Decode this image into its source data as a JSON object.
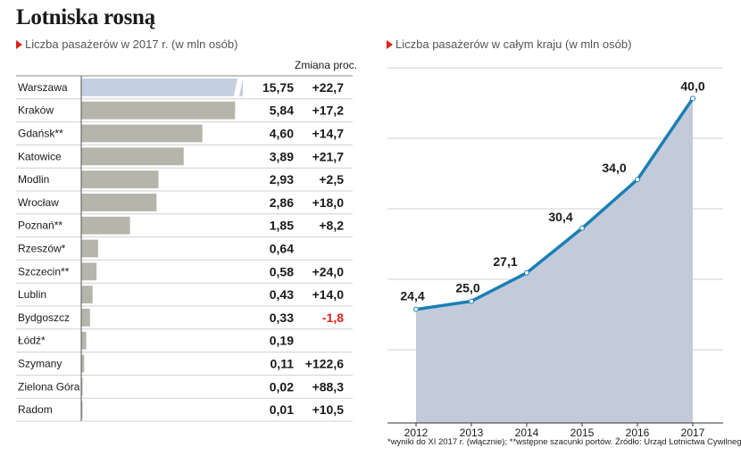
{
  "title": "Lotniska rosną",
  "left_subtitle": "Liczba pasażerów w 2017 r. (w mln osób)",
  "right_subtitle": "Liczba pasażerów w całym kraju (w mln osób)",
  "change_header": "Zmiana proc.",
  "footnote": "*wyniki do XI 2017 r. (włącznie); **wstępne szacunki portów. Źródło: Urząd Lotnictwa Cywilnego",
  "colors": {
    "bar": "#b5b5ab",
    "bar_highlight": "#c5cfe2",
    "negative": "#e2231a",
    "area": "#c3cbdb",
    "line": "#1a7fb5",
    "accent": "#e2231a"
  },
  "chart_data": [
    {
      "type": "bar",
      "orientation": "horizontal",
      "title": "Liczba pasażerów w 2017 r. (w mln osób)",
      "categories": [
        "Warszawa",
        "Kraków",
        "Gdańsk**",
        "Katowice",
        "Modlin",
        "Wrocław",
        "Poznań**",
        "Rzeszów*",
        "Szczecin**",
        "Lublin",
        "Bydgoszcz",
        "Łódź*",
        "Szymany",
        "Zielona Góra",
        "Radom"
      ],
      "values": [
        15.75,
        5.84,
        4.6,
        3.89,
        2.93,
        2.86,
        1.85,
        0.64,
        0.58,
        0.43,
        0.33,
        0.19,
        0.11,
        0.02,
        0.01
      ],
      "value_labels": [
        "15,75",
        "5,84",
        "4,60",
        "3,89",
        "2,93",
        "2,86",
        "1,85",
        "0,64",
        "0,58",
        "0,43",
        "0,33",
        "0,19",
        "0,11",
        "0,02",
        "0,01"
      ],
      "change_labels": [
        "+22,7",
        "+17,2",
        "+14,7",
        "+21,7",
        "+2,5",
        "+18,0",
        "+8,2",
        "",
        "+24,0",
        "+14,0",
        "-1,8",
        "",
        "+122,6",
        "+88,3",
        "+10,5"
      ],
      "change_header": "Zmiana proc.",
      "highlight_index": 0,
      "truncated_first_bar": true
    },
    {
      "type": "area",
      "title": "Liczba pasażerów w całym kraju (w mln osób)",
      "x": [
        "2012",
        "2013",
        "2014",
        "2015",
        "2016",
        "2017"
      ],
      "values": [
        24.4,
        25.0,
        27.1,
        30.4,
        34.0,
        40.0
      ],
      "value_labels": [
        "24,4",
        "25,0",
        "27,1",
        "30,4",
        "34,0",
        "40,0"
      ],
      "ylim": [
        16,
        42
      ],
      "grid": true
    }
  ]
}
